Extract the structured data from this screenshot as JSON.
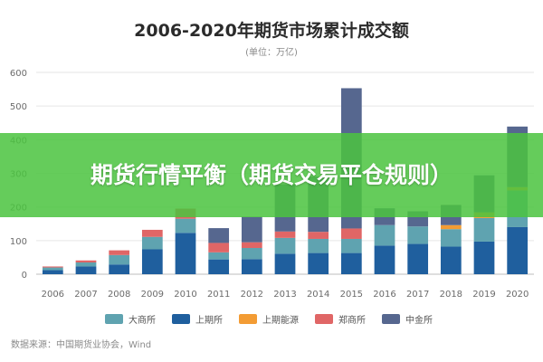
{
  "chart_data": {
    "type": "bar",
    "stacked": true,
    "title": "2006-2020年期货市场累计成交额",
    "subtitle": "(单位：万亿)",
    "ylim": [
      0,
      600
    ],
    "yticks": [
      0,
      100,
      200,
      300,
      400,
      500,
      600
    ],
    "grid": true,
    "legend_position": "bottom",
    "categories": [
      "2006",
      "2007",
      "2008",
      "2009",
      "2010",
      "2011",
      "2012",
      "2013",
      "2014",
      "2015",
      "2016",
      "2017",
      "2018",
      "2019",
      "2020"
    ],
    "series": [
      {
        "name": "上期所",
        "color": "#1f5f9e",
        "values": [
          12,
          23,
          29,
          74,
          123,
          44,
          45,
          61,
          63,
          63,
          85,
          90,
          82,
          97,
          140
        ]
      },
      {
        "name": "大商所",
        "color": "#5fa3b0",
        "values": [
          8,
          12,
          28,
          37,
          42,
          21,
          33,
          47,
          42,
          42,
          61,
          52,
          52,
          70,
          109
        ]
      },
      {
        "name": "郑商所",
        "color": "#e06666",
        "values": [
          3,
          6,
          14,
          21,
          30,
          28,
          17,
          19,
          21,
          31,
          0,
          0,
          0,
          0,
          0
        ]
      },
      {
        "name": "上期能源",
        "color": "#f39c34",
        "values": [
          0,
          0,
          0,
          0,
          0,
          0,
          0,
          0,
          0,
          0,
          0,
          0,
          12,
          17,
          10
        ]
      },
      {
        "name": "中金所",
        "color": "#56678f",
        "values": [
          0,
          0,
          0,
          0,
          0,
          44,
          76,
          140,
          164,
          417,
          50,
          45,
          60,
          110,
          180
        ]
      }
    ],
    "source": "数据来源：中国期货业协会，Wind"
  },
  "banner": {
    "text": "期货行情平衡（期货交易平仓规则）"
  }
}
